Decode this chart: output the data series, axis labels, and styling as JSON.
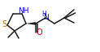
{
  "bg_color": "#ffffff",
  "bond_color": "#1a1a1a",
  "S_color": "#c87800",
  "N_color": "#0000cc",
  "O_color": "#cc0000",
  "figsize": [
    1.23,
    0.64
  ],
  "dpi": 100,
  "xlim": [
    0,
    123
  ],
  "ylim": [
    0,
    64
  ]
}
